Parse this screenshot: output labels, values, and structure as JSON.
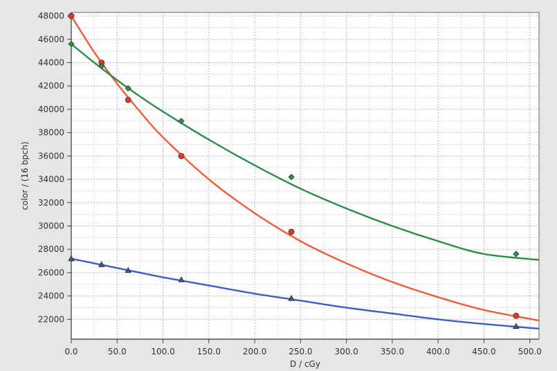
{
  "chart_data": {
    "type": "scatter",
    "xlabel": "D / cGy",
    "ylabel": "color / (16 bpch)",
    "xlim": [
      0,
      510
    ],
    "ylim": [
      20300,
      48300
    ],
    "x_ticks": [
      0,
      50,
      100,
      150,
      200,
      250,
      300,
      350,
      400,
      450,
      500
    ],
    "x_tick_labels": [
      "0.0",
      "50.0",
      "100.0",
      "150.0",
      "200.0",
      "250.0",
      "300.0",
      "350.0",
      "400.0",
      "450.0",
      "500.0"
    ],
    "y_ticks": [
      22000,
      24000,
      26000,
      28000,
      30000,
      32000,
      34000,
      36000,
      38000,
      40000,
      42000,
      44000,
      46000,
      48000
    ],
    "y_tick_labels": [
      "22000",
      "24000",
      "26000",
      "28000",
      "30000",
      "32000",
      "34000",
      "36000",
      "38000",
      "40000",
      "42000",
      "44000",
      "46000",
      "48000"
    ],
    "grid": true,
    "legend": "none",
    "series": [
      {
        "marker": "circle",
        "color": "#f15a3a",
        "marker_fill": "#e03a2a",
        "x": [
          0,
          33,
          62,
          120,
          240,
          485
        ],
        "y": [
          48000,
          44000,
          40800,
          36000,
          29500,
          22300
        ],
        "fit": {
          "x": [
            0,
            25,
            50,
            75,
            100,
            150,
            200,
            250,
            300,
            350,
            400,
            450,
            510
          ],
          "y": [
            48000,
            44900,
            42200,
            39800,
            37600,
            34000,
            31100,
            28700,
            26800,
            25200,
            23900,
            22800,
            21900
          ]
        }
      },
      {
        "marker": "diamond",
        "color": "#2a8a4a",
        "marker_fill": "#2f8f4f",
        "x": [
          0,
          33,
          62,
          120,
          240,
          485
        ],
        "y": [
          45600,
          43700,
          41800,
          39000,
          34200,
          27600
        ],
        "fit": {
          "x": [
            0,
            25,
            50,
            75,
            100,
            150,
            200,
            250,
            300,
            350,
            400,
            450,
            510
          ],
          "y": [
            45600,
            44000,
            42500,
            41100,
            39800,
            37400,
            35200,
            33200,
            31500,
            30000,
            28700,
            27600,
            27100
          ]
        }
      },
      {
        "marker": "triangle",
        "color": "#3a5ec8",
        "marker_fill": "#4a5a7a",
        "x": [
          0,
          33,
          62,
          120,
          240,
          485
        ],
        "y": [
          27200,
          26700,
          26200,
          25400,
          23800,
          21400
        ],
        "fit": {
          "x": [
            0,
            25,
            50,
            75,
            100,
            150,
            200,
            250,
            300,
            350,
            400,
            450,
            510
          ],
          "y": [
            27200,
            26800,
            26400,
            26000,
            25600,
            24900,
            24200,
            23600,
            23000,
            22500,
            22000,
            21600,
            21200
          ]
        }
      }
    ]
  }
}
